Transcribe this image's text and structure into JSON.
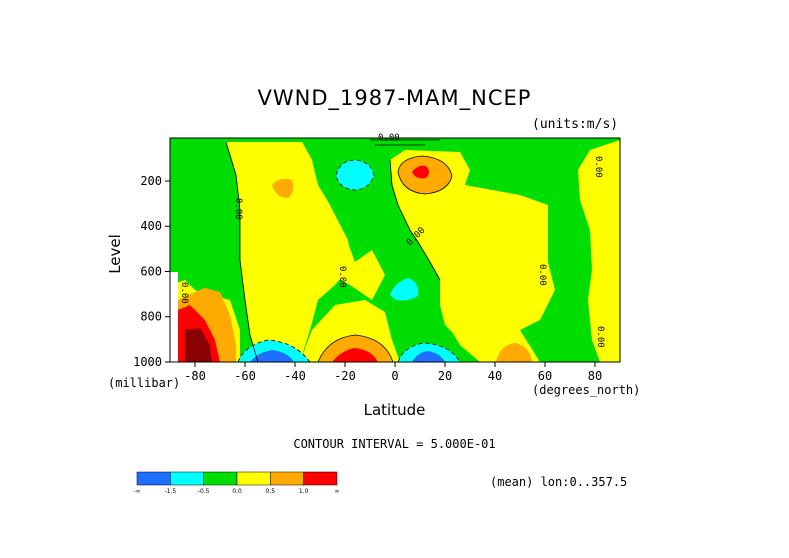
{
  "title": "VWND_1987-MAM_NCEP",
  "units_label": "(units:m/s)",
  "y_axis_label": "Level",
  "y_axis_unit": "(millibar)",
  "x_axis_label": "Latitude",
  "x_axis_unit": "(degrees_north)",
  "contour_interval_text": "CONTOUR INTERVAL = 5.000E-01",
  "mean_text": "(mean) lon:0..357.5",
  "contour_label": "0.00",
  "chart_data": {
    "type": "heatmap",
    "title": "VWND_1987-MAM_NCEP",
    "xlabel": "Latitude",
    "ylabel": "Level",
    "x_ticks": [
      -80,
      -60,
      -40,
      -20,
      0,
      20,
      40,
      60,
      80
    ],
    "x_tick_labels": [
      "-80",
      "-60",
      "-40",
      "-20",
      "0",
      "20",
      "40",
      "60",
      "80"
    ],
    "y_ticks": [
      200,
      400,
      600,
      800,
      1000
    ],
    "y_tick_labels": [
      "200",
      "400",
      "600",
      "800",
      "1000"
    ],
    "xlim": [
      -90,
      90
    ],
    "ylim": [
      1000,
      10
    ],
    "contour_interval": 0.5,
    "colorbar": {
      "labels": [
        "-∞",
        "-1.5",
        "-0.5",
        "0.0",
        "0.5",
        "1.0",
        "∞"
      ],
      "colors": [
        "#1e6eff",
        "#00ffff",
        "#00dd00",
        "#ffff00",
        "#ffaa00",
        "#ff0000"
      ]
    },
    "features": [
      {
        "type": "max",
        "lat": 10,
        "level": 160,
        "value": 2.0
      },
      {
        "type": "min",
        "lat": -18,
        "level": 190,
        "value": -1.0
      },
      {
        "type": "max",
        "lat": -45,
        "level": 240,
        "value": 1.0
      },
      {
        "type": "min",
        "lat": 3,
        "level": 680,
        "value": -1.0
      },
      {
        "type": "min",
        "lat": -50,
        "level": 980,
        "value": -2.0
      },
      {
        "type": "max",
        "lat": -18,
        "level": 980,
        "value": 2.0
      },
      {
        "type": "min",
        "lat": 10,
        "level": 980,
        "value": -2.0
      },
      {
        "type": "max",
        "lat": 47,
        "level": 960,
        "value": 1.0
      },
      {
        "type": "max",
        "lat": -80,
        "level": 880,
        "value": 2.5
      }
    ]
  }
}
